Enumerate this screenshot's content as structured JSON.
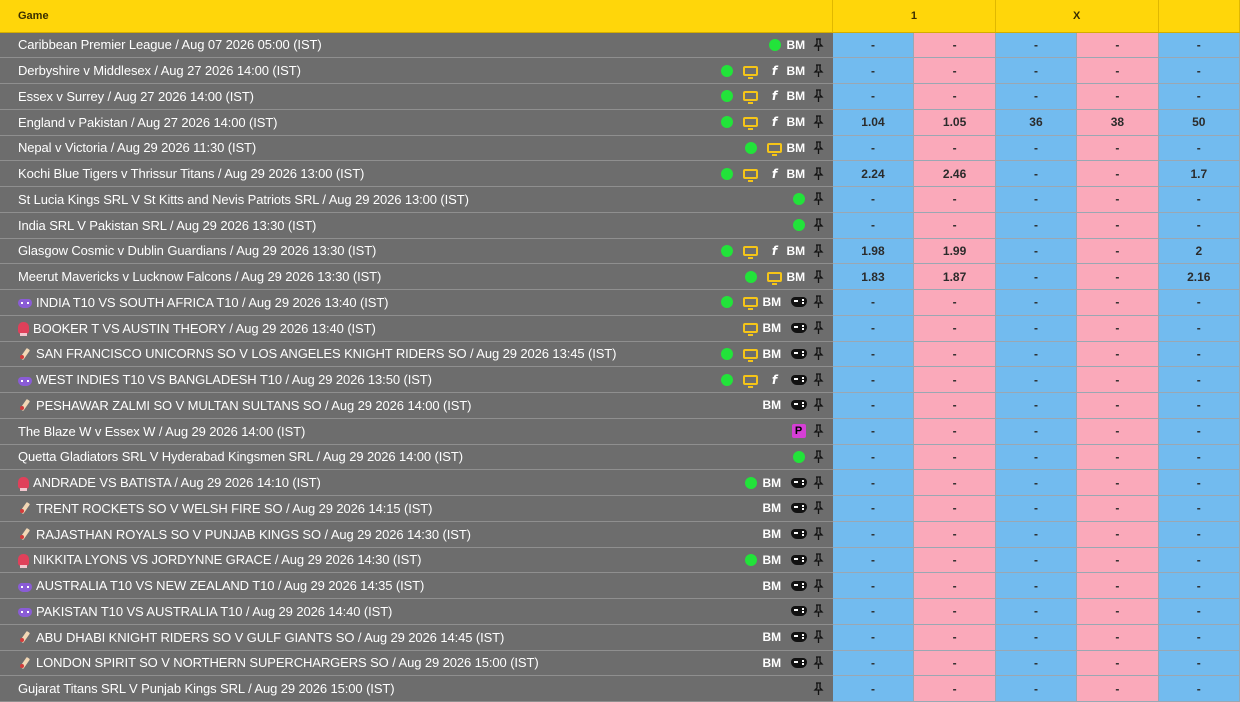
{
  "header": {
    "game_label": "Game",
    "col1_label": "1",
    "colx_label": "X",
    "col2_label": ""
  },
  "colors": {
    "header_bg": "#ffd60a",
    "row_bg": "#6d6d6d",
    "back_bg": "#72bbef",
    "lay_bg": "#faa9ba",
    "live_dot": "#22e33a",
    "tv_icon": "#f5c518"
  },
  "rows": [
    {
      "name": "Caribbean Premier League / Aug 07 2026 05:00 (IST)",
      "lead": "",
      "icons": [
        "dot",
        "bm",
        "pin"
      ],
      "odds": [
        "-",
        "-",
        "-",
        "-",
        "-"
      ]
    },
    {
      "name": "Derbyshire v Middlesex / Aug 27 2026 14:00 (IST)",
      "lead": "",
      "icons": [
        "dot",
        "tv",
        "fb",
        "bm",
        "pin"
      ],
      "odds": [
        "-",
        "-",
        "-",
        "-",
        "-"
      ]
    },
    {
      "name": "Essex v Surrey / Aug 27 2026 14:00 (IST)",
      "lead": "",
      "icons": [
        "dot",
        "tv",
        "fb",
        "bm",
        "pin"
      ],
      "odds": [
        "-",
        "-",
        "-",
        "-",
        "-"
      ]
    },
    {
      "name": "England v Pakistan / Aug 27 2026 14:00 (IST)",
      "lead": "",
      "icons": [
        "dot",
        "tv",
        "fb",
        "bm",
        "pin"
      ],
      "odds": [
        "1.04",
        "1.05",
        "36",
        "38",
        "50"
      ]
    },
    {
      "name": "Nepal v Victoria / Aug 29 2026 11:30 (IST)",
      "lead": "",
      "icons": [
        "dot",
        "tv",
        "bm",
        "pin"
      ],
      "odds": [
        "-",
        "-",
        "-",
        "-",
        "-"
      ]
    },
    {
      "name": "Kochi Blue Tigers v Thrissur Titans / Aug 29 2026 13:00 (IST)",
      "lead": "",
      "icons": [
        "dot",
        "tv",
        "fb",
        "bm",
        "pin"
      ],
      "odds": [
        "2.24",
        "2.46",
        "-",
        "-",
        "1.7"
      ]
    },
    {
      "name": "St Lucia Kings SRL V St Kitts and Nevis Patriots SRL / Aug 29 2026 13:00 (IST)",
      "lead": "",
      "icons": [
        "dot",
        "pin"
      ],
      "odds": [
        "-",
        "-",
        "-",
        "-",
        "-"
      ]
    },
    {
      "name": "India SRL V Pakistan SRL / Aug 29 2026 13:30 (IST)",
      "lead": "",
      "icons": [
        "dot",
        "pin"
      ],
      "odds": [
        "-",
        "-",
        "-",
        "-",
        "-"
      ]
    },
    {
      "name": "Glasgow Cosmic v Dublin Guardians / Aug 29 2026 13:30 (IST)",
      "lead": "",
      "icons": [
        "dot",
        "tv",
        "fb",
        "bm",
        "pin"
      ],
      "odds": [
        "1.98",
        "1.99",
        "-",
        "-",
        "2"
      ]
    },
    {
      "name": "Meerut Mavericks v Lucknow Falcons / Aug 29 2026 13:30 (IST)",
      "lead": "",
      "icons": [
        "dot",
        "tv",
        "bm",
        "pin"
      ],
      "odds": [
        "1.83",
        "1.87",
        "-",
        "-",
        "2.16"
      ]
    },
    {
      "name": "INDIA T10 VS SOUTH AFRICA T10 / Aug 29 2026 13:40 (IST)",
      "lead": "controller",
      "icons": [
        "dot",
        "tv",
        "bm",
        "gp",
        "pin"
      ],
      "odds": [
        "-",
        "-",
        "-",
        "-",
        "-"
      ]
    },
    {
      "name": "BOOKER T VS AUSTIN THEORY / Aug 29 2026 13:40 (IST)",
      "lead": "glove",
      "icons": [
        "tv",
        "bm",
        "gp",
        "pin"
      ],
      "odds": [
        "-",
        "-",
        "-",
        "-",
        "-"
      ]
    },
    {
      "name": "SAN FRANCISCO UNICORNS SO V LOS ANGELES KNIGHT RIDERS SO / Aug 29 2026 13:45 (IST)",
      "lead": "bat",
      "icons": [
        "dot",
        "tv",
        "bm",
        "gp",
        "pin"
      ],
      "odds": [
        "-",
        "-",
        "-",
        "-",
        "-"
      ]
    },
    {
      "name": "WEST INDIES T10 VS BANGLADESH T10 / Aug 29 2026 13:50 (IST)",
      "lead": "controller",
      "icons": [
        "dot",
        "tv",
        "fb",
        "gp",
        "pin"
      ],
      "odds": [
        "-",
        "-",
        "-",
        "-",
        "-"
      ]
    },
    {
      "name": "PESHAWAR ZALMI SO V MULTAN SULTANS SO / Aug 29 2026 14:00 (IST)",
      "lead": "bat",
      "icons": [
        "bm",
        "gp",
        "pin"
      ],
      "odds": [
        "-",
        "-",
        "-",
        "-",
        "-"
      ]
    },
    {
      "name": "The Blaze W v Essex W / Aug 29 2026 14:00 (IST)",
      "lead": "",
      "icons": [
        "pp",
        "pin"
      ],
      "odds": [
        "-",
        "-",
        "-",
        "-",
        "-"
      ]
    },
    {
      "name": "Quetta Gladiators SRL V Hyderabad Kingsmen SRL / Aug 29 2026 14:00 (IST)",
      "lead": "",
      "icons": [
        "dot",
        "pin"
      ],
      "odds": [
        "-",
        "-",
        "-",
        "-",
        "-"
      ]
    },
    {
      "name": "ANDRADE VS BATISTA / Aug 29 2026 14:10 (IST)",
      "lead": "glove",
      "icons": [
        "dot",
        "bm",
        "gp",
        "pin"
      ],
      "odds": [
        "-",
        "-",
        "-",
        "-",
        "-"
      ]
    },
    {
      "name": "TRENT ROCKETS SO V WELSH FIRE SO / Aug 29 2026 14:15 (IST)",
      "lead": "bat",
      "icons": [
        "bm",
        "gp",
        "pin"
      ],
      "odds": [
        "-",
        "-",
        "-",
        "-",
        "-"
      ]
    },
    {
      "name": "RAJASTHAN ROYALS SO V PUNJAB KINGS SO / Aug 29 2026 14:30 (IST)",
      "lead": "bat",
      "icons": [
        "bm",
        "gp",
        "pin"
      ],
      "odds": [
        "-",
        "-",
        "-",
        "-",
        "-"
      ]
    },
    {
      "name": "NIKKITA LYONS VS JORDYNNE GRACE / Aug 29 2026 14:30 (IST)",
      "lead": "glove",
      "icons": [
        "dot",
        "bm",
        "gp",
        "pin"
      ],
      "odds": [
        "-",
        "-",
        "-",
        "-",
        "-"
      ]
    },
    {
      "name": "AUSTRALIA T10 VS NEW ZEALAND T10 / Aug 29 2026 14:35 (IST)",
      "lead": "controller",
      "icons": [
        "bm",
        "gp",
        "pin"
      ],
      "odds": [
        "-",
        "-",
        "-",
        "-",
        "-"
      ]
    },
    {
      "name": "PAKISTAN T10 VS AUSTRALIA T10 / Aug 29 2026 14:40 (IST)",
      "lead": "controller",
      "icons": [
        "gp",
        "pin"
      ],
      "odds": [
        "-",
        "-",
        "-",
        "-",
        "-"
      ]
    },
    {
      "name": "ABU DHABI KNIGHT RIDERS SO V GULF GIANTS SO / Aug 29 2026 14:45 (IST)",
      "lead": "bat",
      "icons": [
        "bm",
        "gp",
        "pin"
      ],
      "odds": [
        "-",
        "-",
        "-",
        "-",
        "-"
      ]
    },
    {
      "name": "LONDON SPIRIT SO V NORTHERN SUPERCHARGERS SO / Aug 29 2026 15:00 (IST)",
      "lead": "bat",
      "icons": [
        "bm",
        "gp",
        "pin"
      ],
      "odds": [
        "-",
        "-",
        "-",
        "-",
        "-"
      ]
    },
    {
      "name": "Gujarat Titans SRL V Punjab Kings SRL / Aug 29 2026 15:00 (IST)",
      "lead": "",
      "icons": [
        "pin"
      ],
      "odds": [
        "-",
        "-",
        "-",
        "-",
        "-"
      ]
    }
  ],
  "icon_text": {
    "bm": "BM",
    "fb": "f",
    "pp": "P"
  }
}
